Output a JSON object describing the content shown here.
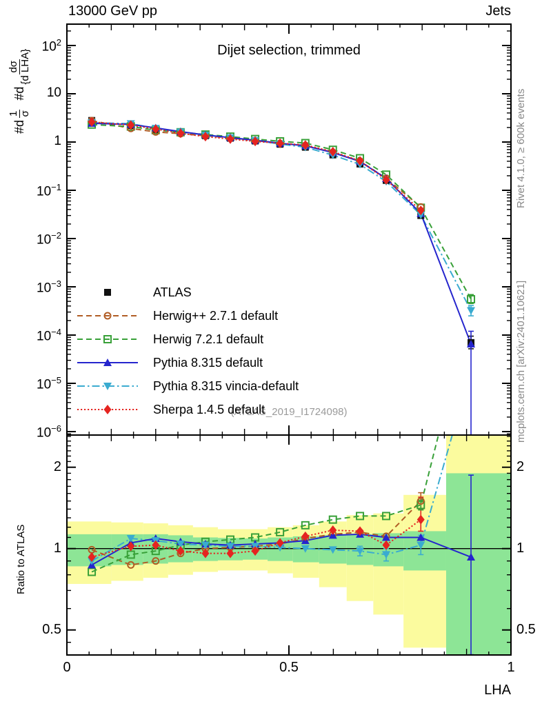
{
  "header": {
    "left": "13000 GeV pp",
    "right": "Jets"
  },
  "side_texts": {
    "top": "Rivet 4.1.0, ≥ 600k events",
    "bottom": "mcplots.cern.ch [arXiv:2401.10621]"
  },
  "main_panel": {
    "title": "Dijet selection, trimmed",
    "watermark": "(ATLAS_2019_I1724098)",
    "ylabel": {
      "prefix1": "#d",
      "num1": "1",
      "den1": "σ",
      "prefix2": "#d",
      "num2": "dσ",
      "den2": "{d LHA}"
    },
    "ytick_exponents": [
      2,
      1,
      0,
      -1,
      -2,
      -3,
      -4,
      -5,
      -6
    ]
  },
  "ratio_panel": {
    "ylabel": "Ratio to ATLAS",
    "ytick_labels": [
      "2",
      "1",
      "0.5"
    ],
    "ytick_values": [
      2,
      1,
      0.5
    ]
  },
  "xaxis": {
    "label": "LHA",
    "tick_labels": [
      "0",
      "0.5",
      "1"
    ],
    "tick_values": [
      0,
      0.5,
      1
    ]
  },
  "legend": [
    {
      "key": "atlas",
      "label": "ATLAS"
    },
    {
      "key": "herwigpp",
      "label": "Herwig++ 2.7.1 default"
    },
    {
      "key": "herwig7",
      "label": "Herwig 7.2.1 default"
    },
    {
      "key": "pythia",
      "label": "Pythia 8.315 default"
    },
    {
      "key": "vincia",
      "label": "Pythia 8.315 vincia-default"
    },
    {
      "key": "sherpa",
      "label": "Sherpa 1.4.5 default"
    }
  ],
  "colors": {
    "atlas": "#111111",
    "herwigpp": "#b05c24",
    "herwig7": "#38a038",
    "pythia": "#2525cd",
    "vincia": "#3aabd0",
    "sherpa": "#e52420",
    "band_yellow": "#fbfb9e",
    "band_green": "#8de596",
    "frame": "#000000"
  },
  "chart_data": {
    "type": "line",
    "xlabel": "LHA",
    "ylabel": "1/σ dσ/d(LHA)",
    "x_range": [
      0,
      1
    ],
    "main_y_log_range": [
      8.5e-07,
      277
    ],
    "ratio_y_log_range": [
      0.404,
      2.63
    ],
    "x": [
      0.056,
      0.144,
      0.2,
      0.256,
      0.312,
      0.368,
      0.424,
      0.48,
      0.537,
      0.599,
      0.66,
      0.719,
      0.797,
      0.91
    ],
    "bin_edges": [
      0.0,
      0.1,
      0.172,
      0.228,
      0.284,
      0.34,
      0.396,
      0.452,
      0.509,
      0.568,
      0.63,
      0.69,
      0.758,
      0.854,
      1.0
    ],
    "series": [
      {
        "key": "atlas",
        "name": "ATLAS",
        "marker": "square-filled",
        "line": "none",
        "values": [
          2.8,
          2.2,
          1.8,
          1.55,
          1.35,
          1.2,
          1.05,
          0.9,
          0.78,
          0.54,
          0.35,
          0.16,
          0.03,
          7e-05
        ],
        "ratio_to_atlas": [
          1,
          1,
          1,
          1,
          1,
          1,
          1,
          1,
          1,
          1,
          1,
          1,
          1,
          1
        ]
      },
      {
        "key": "herwigpp",
        "name": "Herwig++ 2.7.1 default",
        "marker": "circle-open",
        "line": "dashed",
        "ratio_to_atlas": [
          0.99,
          0.87,
          0.9,
          0.96,
          1.0,
          1.01,
          1.02,
          1.04,
          1.09,
          1.13,
          1.15,
          1.11,
          1.5,
          null
        ]
      },
      {
        "key": "herwig7",
        "name": "Herwig 7.2.1 default",
        "marker": "square-open",
        "line": "dashed",
        "ratio_to_atlas": [
          0.82,
          0.95,
          0.98,
          1.03,
          1.06,
          1.08,
          1.1,
          1.15,
          1.22,
          1.28,
          1.32,
          1.32,
          1.45,
          7.9
        ]
      },
      {
        "key": "pythia",
        "name": "Pythia 8.315 default",
        "marker": "triangle-up",
        "line": "solid",
        "ratio_to_atlas": [
          0.87,
          1.05,
          1.09,
          1.06,
          1.04,
          1.03,
          1.04,
          1.05,
          1.07,
          1.12,
          1.13,
          1.1,
          1.1,
          0.93
        ]
      },
      {
        "key": "vincia",
        "name": "Pythia 8.315 vincia-default",
        "marker": "triangle-down",
        "line": "dashdot",
        "ratio_to_atlas": [
          0.9,
          1.09,
          1.07,
          1.04,
          1.03,
          1.02,
          1.02,
          1.01,
          1.0,
          0.99,
          0.98,
          0.95,
          1.03,
          4.6
        ]
      },
      {
        "key": "sherpa",
        "name": "Sherpa 1.4.5 default",
        "marker": "diamond",
        "line": "dotted",
        "ratio_to_atlas": [
          0.93,
          1.02,
          1.03,
          0.98,
          0.96,
          0.96,
          0.98,
          1.05,
          1.11,
          1.17,
          1.16,
          1.03,
          1.28,
          null
        ]
      }
    ],
    "bands": {
      "yellow_lo": [
        0.74,
        0.76,
        0.78,
        0.8,
        0.82,
        0.83,
        0.83,
        0.81,
        0.78,
        0.72,
        0.64,
        0.57,
        0.43,
        0.4
      ],
      "yellow_hi": [
        1.26,
        1.25,
        1.24,
        1.22,
        1.2,
        1.18,
        1.18,
        1.2,
        1.22,
        1.26,
        1.33,
        1.35,
        1.58,
        2.63
      ],
      "green_lo": [
        0.86,
        0.87,
        0.88,
        0.89,
        0.9,
        0.905,
        0.91,
        0.9,
        0.89,
        0.88,
        0.87,
        0.86,
        0.83,
        0.4
      ],
      "green_hi": [
        1.13,
        1.13,
        1.13,
        1.12,
        1.1,
        1.095,
        1.09,
        1.1,
        1.11,
        1.12,
        1.13,
        1.14,
        1.16,
        1.9
      ]
    },
    "ratio_reference": 1,
    "error_bars": [
      {
        "panel": "main",
        "series": "atlas",
        "x": 0.91,
        "lo": 5.2e-05,
        "hi": 9.5e-05
      },
      {
        "panel": "main",
        "series": "pythia",
        "x": 0.91,
        "lo": 1.5e-07,
        "hi": 0.00012
      },
      {
        "panel": "main",
        "series": "herwig7",
        "x": 0.91,
        "lo": 0.00045,
        "hi": 0.00069
      },
      {
        "panel": "main",
        "series": "vincia",
        "x": 0.91,
        "lo": 0.00025,
        "hi": 0.00041
      },
      {
        "panel": "main",
        "series": "sherpa",
        "x": 0.797,
        "lo": 0.0345,
        "hi": 0.0425
      },
      {
        "panel": "ratio",
        "series": "pythia",
        "x": 0.91,
        "lo": 0.405,
        "hi": 1.87
      },
      {
        "panel": "ratio",
        "series": "herwigpp",
        "x": 0.797,
        "lo": 1.4,
        "hi": 1.61
      },
      {
        "panel": "ratio",
        "series": "sherpa",
        "x": 0.797,
        "lo": 1.16,
        "hi": 1.55
      },
      {
        "panel": "ratio",
        "series": "herwig7",
        "x": 0.797,
        "lo": 1.39,
        "hi": 1.51
      },
      {
        "panel": "ratio",
        "series": "vincia",
        "x": 0.797,
        "lo": 0.95,
        "hi": 1.12
      },
      {
        "panel": "ratio",
        "series": "vincia",
        "x": 0.719,
        "lo": 0.9,
        "hi": 1.0
      },
      {
        "panel": "ratio",
        "series": "vincia",
        "x": 0.66,
        "lo": 0.94,
        "hi": 1.02
      }
    ],
    "legend_position": "middle-left",
    "grid": false
  }
}
